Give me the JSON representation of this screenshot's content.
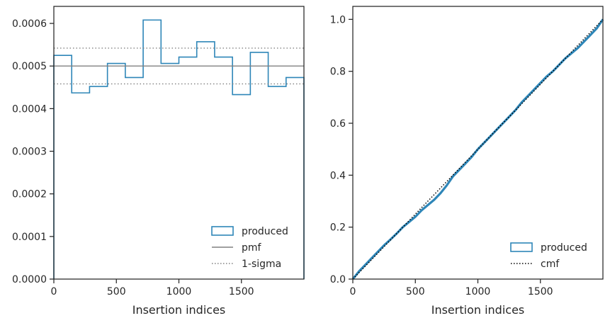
{
  "chart_data": [
    {
      "type": "step",
      "xlabel": "Insertion indices",
      "ylabel": "",
      "xlim": [
        0,
        2000
      ],
      "ylim": [
        0,
        0.00064
      ],
      "xticks": [
        0,
        500,
        1000,
        1500
      ],
      "xtick_labels": [
        "0",
        "500",
        "1000",
        "1500"
      ],
      "yticks": [
        0,
        0.0001,
        0.0002,
        0.0003,
        0.0004,
        0.0005,
        0.0006
      ],
      "ytick_labels": [
        "0.0000",
        "0.0001",
        "0.0002",
        "0.0003",
        "0.0004",
        "0.0005",
        "0.0006"
      ],
      "bin_edges": [
        0,
        142.857,
        285.714,
        428.571,
        571.429,
        714.286,
        857.143,
        1000,
        1142.857,
        1285.714,
        1428.571,
        1571.429,
        1714.286,
        1857.143,
        2000
      ],
      "series": [
        {
          "name": "produced",
          "kind": "step-histogram",
          "color": "#2e86b8",
          "values": [
            0.000525,
            0.000437,
            0.000452,
            0.000506,
            0.000473,
            0.000608,
            0.000506,
            0.000521,
            0.000557,
            0.000521,
            0.000433,
            0.000532,
            0.000452,
            0.000473
          ]
        },
        {
          "name": "pmf",
          "kind": "hline",
          "color": "#808080",
          "value": 0.0005
        },
        {
          "name": "1-sigma",
          "kind": "hline-dotted",
          "color": "#808080",
          "values": [
            0.000542,
            0.000458
          ]
        }
      ],
      "legend": {
        "placement": "lower-right",
        "entries": [
          "produced",
          "pmf",
          "1-sigma"
        ]
      },
      "grid": false
    },
    {
      "type": "line",
      "xlabel": "Insertion indices",
      "ylabel": "",
      "xlim": [
        0,
        2000
      ],
      "ylim": [
        0,
        1.05
      ],
      "xticks": [
        0,
        500,
        1000,
        1500
      ],
      "xtick_labels": [
        "0",
        "500",
        "1000",
        "1500"
      ],
      "yticks": [
        0,
        0.2,
        0.4,
        0.6,
        0.8,
        1.0
      ],
      "ytick_labels": [
        "0.0",
        "0.2",
        "0.4",
        "0.6",
        "0.8",
        "1.0"
      ],
      "series": [
        {
          "name": "produced",
          "kind": "thick-line",
          "color": "#2e86b8",
          "x": [
            0,
            50,
            100,
            150,
            200,
            250,
            300,
            350,
            400,
            450,
            500,
            550,
            600,
            650,
            700,
            750,
            800,
            850,
            900,
            950,
            1000,
            1050,
            1100,
            1150,
            1200,
            1250,
            1300,
            1350,
            1400,
            1450,
            1500,
            1550,
            1600,
            1650,
            1700,
            1750,
            1800,
            1850,
            1900,
            1950,
            2000
          ],
          "y": [
            0,
            0.03,
            0.055,
            0.08,
            0.105,
            0.13,
            0.152,
            0.175,
            0.2,
            0.22,
            0.24,
            0.265,
            0.285,
            0.305,
            0.33,
            0.36,
            0.395,
            0.42,
            0.445,
            0.47,
            0.5,
            0.525,
            0.55,
            0.575,
            0.6,
            0.625,
            0.65,
            0.68,
            0.705,
            0.73,
            0.755,
            0.78,
            0.8,
            0.825,
            0.85,
            0.87,
            0.89,
            0.915,
            0.94,
            0.965,
            1.0
          ]
        },
        {
          "name": "cmf",
          "kind": "dotted-line",
          "color": "#000000",
          "x": [
            0,
            2000
          ],
          "y": [
            0,
            1.0
          ]
        }
      ],
      "legend": {
        "placement": "lower-right",
        "entries": [
          "produced",
          "cmf"
        ]
      },
      "grid": false
    }
  ]
}
